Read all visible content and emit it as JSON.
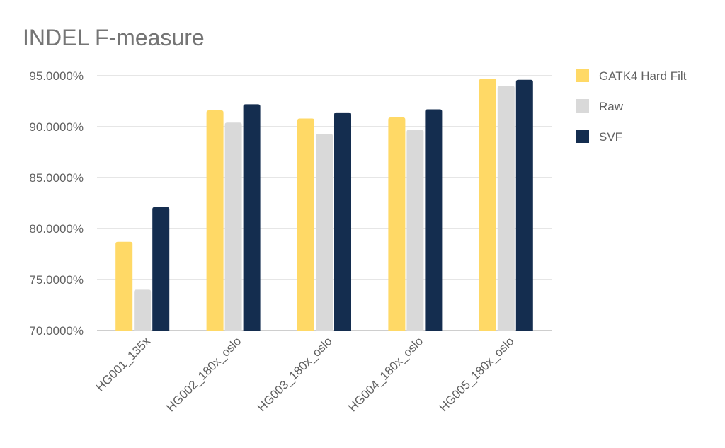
{
  "chart_data": {
    "type": "bar",
    "title": "INDEL F-measure",
    "xlabel": "",
    "ylabel": "",
    "categories": [
      "HG001_135x",
      "HG002_180x_oslo",
      "HG003_180x_oslo",
      "HG004_180x_oslo",
      "HG005_180x_oslo"
    ],
    "series": [
      {
        "name": "GATK4 Hard Filt",
        "color": "#FFD966",
        "values": [
          78.7,
          91.6,
          90.8,
          90.9,
          94.7
        ]
      },
      {
        "name": "Raw",
        "color": "#D9D9D9",
        "values": [
          74.0,
          90.4,
          89.3,
          89.7,
          94.0
        ]
      },
      {
        "name": "SVF",
        "color": "#142D4F",
        "values": [
          82.1,
          92.2,
          91.4,
          91.7,
          94.6
        ]
      }
    ],
    "ylim": [
      70,
      95
    ],
    "yticks": [
      70,
      75,
      80,
      85,
      90,
      95
    ],
    "ytick_labels": [
      "70.0000%",
      "75.0000%",
      "80.0000%",
      "85.0000%",
      "90.0000%",
      "95.0000%"
    ],
    "grid": true,
    "legend_position": "right"
  }
}
